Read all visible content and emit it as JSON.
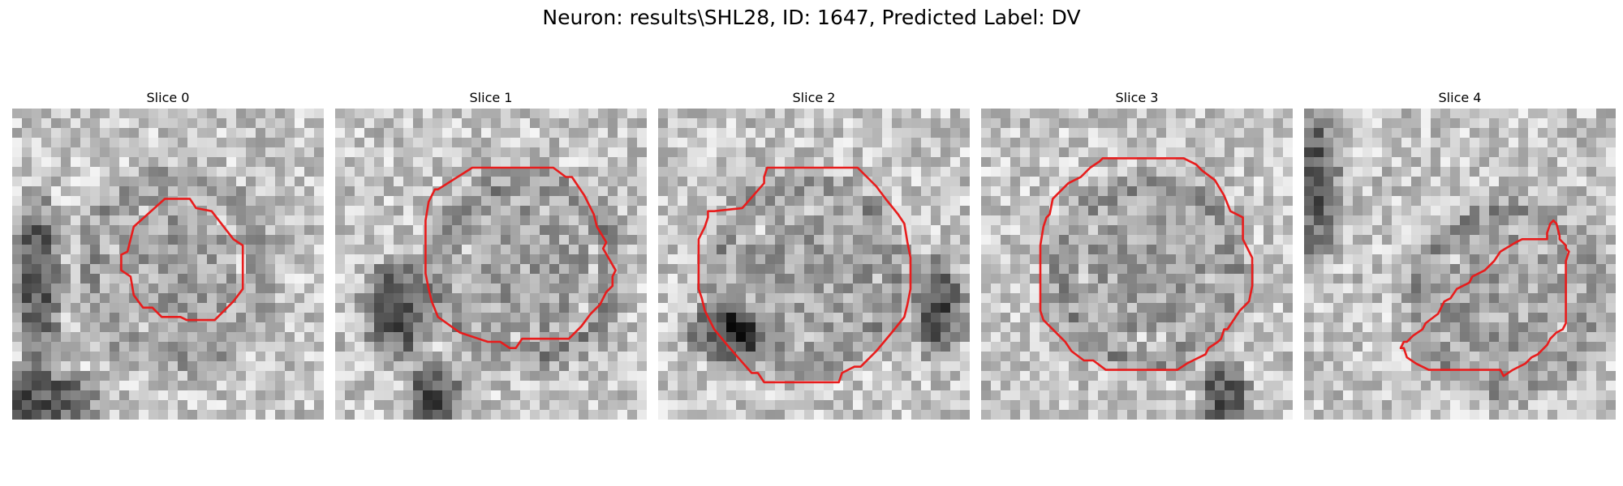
{
  "figure": {
    "title": "Neuron: results\\SHL28, ID: 1647, Predicted Label: DV"
  },
  "panels": [
    {
      "title": "Slice 0",
      "seed": 11,
      "dark_spots": [
        [
          0.08,
          0.55,
          0.1,
          0.32
        ],
        [
          0.05,
          0.93,
          0.3,
          0.12
        ]
      ],
      "contour": [
        [
          0.39,
          0.38
        ],
        [
          0.49,
          0.29
        ],
        [
          0.57,
          0.29
        ],
        [
          0.59,
          0.32
        ],
        [
          0.64,
          0.33
        ],
        [
          0.71,
          0.42
        ],
        [
          0.74,
          0.44
        ],
        [
          0.74,
          0.58
        ],
        [
          0.71,
          0.62
        ],
        [
          0.66,
          0.67
        ],
        [
          0.65,
          0.68
        ],
        [
          0.56,
          0.68
        ],
        [
          0.54,
          0.67
        ],
        [
          0.48,
          0.67
        ],
        [
          0.45,
          0.64
        ],
        [
          0.42,
          0.64
        ],
        [
          0.39,
          0.6
        ],
        [
          0.38,
          0.54
        ],
        [
          0.35,
          0.52
        ],
        [
          0.35,
          0.47
        ],
        [
          0.37,
          0.46
        ]
      ]
    },
    {
      "title": "Slice 1",
      "seed": 23,
      "dark_spots": [
        [
          0.2,
          0.65,
          0.14,
          0.2
        ],
        [
          0.32,
          0.92,
          0.12,
          0.12
        ]
      ],
      "contour": [
        [
          0.33,
          0.26
        ],
        [
          0.44,
          0.19
        ],
        [
          0.7,
          0.19
        ],
        [
          0.74,
          0.22
        ],
        [
          0.76,
          0.22
        ],
        [
          0.8,
          0.28
        ],
        [
          0.83,
          0.34
        ],
        [
          0.84,
          0.38
        ],
        [
          0.87,
          0.43
        ],
        [
          0.86,
          0.45
        ],
        [
          0.9,
          0.52
        ],
        [
          0.89,
          0.54
        ],
        [
          0.89,
          0.57
        ],
        [
          0.87,
          0.59
        ],
        [
          0.85,
          0.63
        ],
        [
          0.82,
          0.66
        ],
        [
          0.79,
          0.7
        ],
        [
          0.75,
          0.74
        ],
        [
          0.73,
          0.74
        ],
        [
          0.6,
          0.74
        ],
        [
          0.58,
          0.77
        ],
        [
          0.56,
          0.77
        ],
        [
          0.53,
          0.75
        ],
        [
          0.49,
          0.75
        ],
        [
          0.46,
          0.74
        ],
        [
          0.4,
          0.72
        ],
        [
          0.33,
          0.67
        ],
        [
          0.31,
          0.62
        ],
        [
          0.3,
          0.58
        ],
        [
          0.29,
          0.53
        ],
        [
          0.29,
          0.36
        ],
        [
          0.3,
          0.3
        ],
        [
          0.32,
          0.26
        ]
      ]
    },
    {
      "title": "Slice 2",
      "seed": 37,
      "dark_spots": [
        [
          0.22,
          0.72,
          0.16,
          0.12
        ],
        [
          0.9,
          0.65,
          0.1,
          0.2
        ]
      ],
      "contour": [
        [
          0.27,
          0.32
        ],
        [
          0.34,
          0.24
        ],
        [
          0.34,
          0.22
        ],
        [
          0.35,
          0.19
        ],
        [
          0.64,
          0.19
        ],
        [
          0.67,
          0.22
        ],
        [
          0.7,
          0.25
        ],
        [
          0.73,
          0.29
        ],
        [
          0.77,
          0.34
        ],
        [
          0.79,
          0.37
        ],
        [
          0.8,
          0.43
        ],
        [
          0.81,
          0.48
        ],
        [
          0.81,
          0.58
        ],
        [
          0.8,
          0.63
        ],
        [
          0.79,
          0.67
        ],
        [
          0.75,
          0.72
        ],
        [
          0.7,
          0.78
        ],
        [
          0.65,
          0.83
        ],
        [
          0.63,
          0.83
        ],
        [
          0.59,
          0.85
        ],
        [
          0.58,
          0.88
        ],
        [
          0.34,
          0.88
        ],
        [
          0.32,
          0.85
        ],
        [
          0.3,
          0.85
        ],
        [
          0.23,
          0.77
        ],
        [
          0.18,
          0.71
        ],
        [
          0.15,
          0.65
        ],
        [
          0.14,
          0.61
        ],
        [
          0.13,
          0.58
        ],
        [
          0.13,
          0.42
        ],
        [
          0.15,
          0.38
        ],
        [
          0.16,
          0.35
        ],
        [
          0.16,
          0.33
        ],
        [
          0.18,
          0.33
        ]
      ]
    },
    {
      "title": "Slice 3",
      "seed": 53,
      "dark_spots": [
        [
          0.78,
          0.92,
          0.1,
          0.14
        ]
      ],
      "contour": [
        [
          0.23,
          0.29
        ],
        [
          0.28,
          0.24
        ],
        [
          0.32,
          0.22
        ],
        [
          0.35,
          0.19
        ],
        [
          0.38,
          0.17
        ],
        [
          0.39,
          0.16
        ],
        [
          0.65,
          0.16
        ],
        [
          0.69,
          0.18
        ],
        [
          0.71,
          0.2
        ],
        [
          0.75,
          0.23
        ],
        [
          0.78,
          0.28
        ],
        [
          0.8,
          0.33
        ],
        [
          0.84,
          0.35
        ],
        [
          0.84,
          0.42
        ],
        [
          0.87,
          0.48
        ],
        [
          0.87,
          0.57
        ],
        [
          0.86,
          0.62
        ],
        [
          0.83,
          0.65
        ],
        [
          0.79,
          0.71
        ],
        [
          0.78,
          0.71
        ],
        [
          0.77,
          0.74
        ],
        [
          0.76,
          0.75
        ],
        [
          0.73,
          0.77
        ],
        [
          0.72,
          0.79
        ],
        [
          0.68,
          0.81
        ],
        [
          0.66,
          0.82
        ],
        [
          0.63,
          0.84
        ],
        [
          0.48,
          0.84
        ],
        [
          0.4,
          0.84
        ],
        [
          0.36,
          0.81
        ],
        [
          0.33,
          0.81
        ],
        [
          0.29,
          0.78
        ],
        [
          0.27,
          0.75
        ],
        [
          0.25,
          0.73
        ],
        [
          0.23,
          0.71
        ],
        [
          0.2,
          0.68
        ],
        [
          0.19,
          0.65
        ],
        [
          0.19,
          0.44
        ],
        [
          0.2,
          0.38
        ],
        [
          0.21,
          0.35
        ],
        [
          0.22,
          0.34
        ]
      ]
    },
    {
      "title": "Slice 4",
      "seed": 71,
      "dark_spots": [
        [
          0.04,
          0.25,
          0.09,
          0.3
        ]
      ],
      "contour": [
        [
          0.63,
          0.46
        ],
        [
          0.68,
          0.43
        ],
        [
          0.7,
          0.42
        ],
        [
          0.78,
          0.42
        ],
        [
          0.78,
          0.4
        ],
        [
          0.79,
          0.37
        ],
        [
          0.8,
          0.36
        ],
        [
          0.81,
          0.37
        ],
        [
          0.82,
          0.41
        ],
        [
          0.82,
          0.42
        ],
        [
          0.84,
          0.44
        ],
        [
          0.84,
          0.45
        ],
        [
          0.85,
          0.46
        ],
        [
          0.84,
          0.49
        ],
        [
          0.84,
          0.51
        ],
        [
          0.84,
          0.53
        ],
        [
          0.84,
          0.6
        ],
        [
          0.84,
          0.62
        ],
        [
          0.84,
          0.65
        ],
        [
          0.84,
          0.69
        ],
        [
          0.83,
          0.71
        ],
        [
          0.81,
          0.72
        ],
        [
          0.79,
          0.74
        ],
        [
          0.78,
          0.76
        ],
        [
          0.75,
          0.79
        ],
        [
          0.73,
          0.8
        ],
        [
          0.71,
          0.82
        ],
        [
          0.67,
          0.84
        ],
        [
          0.64,
          0.86
        ],
        [
          0.63,
          0.84
        ],
        [
          0.4,
          0.84
        ],
        [
          0.36,
          0.82
        ],
        [
          0.33,
          0.8
        ],
        [
          0.32,
          0.77
        ],
        [
          0.31,
          0.77
        ],
        [
          0.32,
          0.75
        ],
        [
          0.33,
          0.75
        ],
        [
          0.35,
          0.73
        ],
        [
          0.38,
          0.71
        ],
        [
          0.39,
          0.69
        ],
        [
          0.43,
          0.66
        ],
        [
          0.45,
          0.62
        ],
        [
          0.47,
          0.61
        ],
        [
          0.49,
          0.58
        ],
        [
          0.53,
          0.56
        ],
        [
          0.54,
          0.54
        ],
        [
          0.58,
          0.52
        ],
        [
          0.61,
          0.49
        ]
      ]
    }
  ],
  "colors": {
    "contour": "#e81c1c"
  }
}
